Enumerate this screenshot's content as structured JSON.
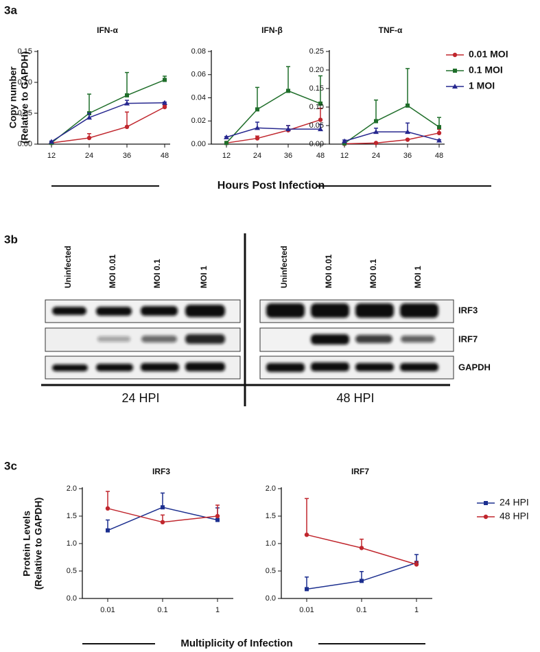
{
  "panel_a": {
    "label": "3a",
    "y_label": [
      "Copy number",
      "(Relative to GAPDH)"
    ],
    "x_label": "Hours Post Infection"
  },
  "panel_b": {
    "label": "3b",
    "lanes_24": [
      "Uninfected",
      "MOI 0.01",
      "MOI 0.1",
      "MOI 1"
    ],
    "lanes_48": [
      "Uninfected",
      "MOI 0.01",
      "MOI 0.1",
      "MOI 1"
    ],
    "rows": [
      "IRF3",
      "IRF7",
      "GAPDH"
    ],
    "time_labels": [
      "24 HPI",
      "48 HPI"
    ]
  },
  "panel_c": {
    "label": "3c",
    "y_label": [
      "Protein  Levels",
      "(Relative to GAPDH)"
    ],
    "x_label": "Multiplicity of Infection"
  },
  "chart_data": [
    {
      "type": "line",
      "title": "IFN-α",
      "categories": [
        "12",
        "24",
        "36",
        "48"
      ],
      "ylim": [
        0,
        0.15
      ],
      "yticks": [
        {
          "value": 0,
          "label": "0.00"
        },
        0.05,
        {
          "value": 0.1,
          "label": "0.10"
        },
        0.15
      ],
      "series": [
        {
          "name": "0.01 MOI",
          "color": "#c0262d",
          "marker": "circle",
          "values": [
            0.002,
            0.01,
            0.028,
            0.06
          ],
          "errors": [
            0,
            0.007,
            0.024,
            0.003
          ]
        },
        {
          "name": "0.1 MOI",
          "color": "#1f6e2a",
          "marker": "square",
          "values": [
            0.002,
            0.05,
            0.079,
            0.104
          ],
          "errors": [
            0,
            0.031,
            0.037,
            0.006
          ]
        },
        {
          "name": "1 MOI",
          "color": "#27288f",
          "marker": "triangle",
          "values": [
            0.004,
            0.043,
            0.066,
            0.067
          ],
          "errors": [
            0.001,
            0.007,
            0.005,
            0.001
          ]
        }
      ]
    },
    {
      "type": "line",
      "title": "IFN-β",
      "categories": [
        "12",
        "24",
        "36",
        "48"
      ],
      "ylim": [
        0,
        0.08
      ],
      "yticks": [
        {
          "value": 0,
          "label": "0.00"
        },
        0.02,
        0.04,
        0.06,
        0.08
      ],
      "series": [
        {
          "name": "0.01 MOI",
          "color": "#c0262d",
          "marker": "circle",
          "values": [
            0.001,
            0.005,
            0.012,
            0.021
          ],
          "errors": [
            0,
            0.002,
            0.004,
            0.01
          ]
        },
        {
          "name": "0.1 MOI",
          "color": "#1f6e2a",
          "marker": "square",
          "values": [
            0.001,
            0.03,
            0.046,
            0.035
          ],
          "errors": [
            0,
            0.019,
            0.021,
            0.024
          ]
        },
        {
          "name": "1 MOI",
          "color": "#27288f",
          "marker": "triangle",
          "values": [
            0.006,
            0.014,
            0.013,
            0.013
          ],
          "errors": [
            0.0005,
            0.005,
            0.003,
            0.004
          ]
        }
      ]
    },
    {
      "type": "line",
      "title": "TNF-α",
      "categories": [
        "12",
        "24",
        "36",
        "48"
      ],
      "ylim": [
        0,
        0.25
      ],
      "yticks": [
        {
          "value": 0,
          "label": "0.00"
        },
        0.05,
        {
          "value": 0.1,
          "label": "0.10"
        },
        0.15,
        {
          "value": 0.2,
          "label": "0.20"
        },
        0.25
      ],
      "legend": "right",
      "series": [
        {
          "name": "0.01 MOI",
          "color": "#c0262d",
          "marker": "circle",
          "values": [
            0.001,
            0.003,
            0.012,
            0.03
          ],
          "errors": [
            0,
            0.001,
            0.002,
            0.01
          ]
        },
        {
          "name": "0.1 MOI",
          "color": "#1f6e2a",
          "marker": "square",
          "values": [
            0.002,
            0.062,
            0.104,
            0.046
          ],
          "errors": [
            0,
            0.057,
            0.1,
            0.026
          ]
        },
        {
          "name": "1 MOI",
          "color": "#27288f",
          "marker": "triangle",
          "values": [
            0.008,
            0.033,
            0.033,
            0.01
          ],
          "errors": [
            0.003,
            0.01,
            0.024,
            0.002
          ]
        }
      ]
    },
    {
      "type": "line",
      "title": "IRF3",
      "categories": [
        "0.01",
        "0.1",
        "1"
      ],
      "ylim": [
        0,
        2
      ],
      "yticks": [
        {
          "value": 0,
          "label": "0.0"
        },
        0.5,
        {
          "value": 1,
          "label": "1.0"
        },
        1.5,
        {
          "value": 2,
          "label": "2.0"
        }
      ],
      "series": [
        {
          "name": "24 HPI",
          "color": "#1c2f8f",
          "marker": "square",
          "values": [
            1.24,
            1.66,
            1.43
          ],
          "errors": [
            0.19,
            0.26,
            0.22
          ]
        },
        {
          "name": "48 HPI",
          "color": "#c0262d",
          "marker": "circle",
          "values": [
            1.64,
            1.39,
            1.5
          ],
          "errors": [
            0.31,
            0.13,
            0.2
          ]
        }
      ]
    },
    {
      "type": "line",
      "title": "IRF7",
      "categories": [
        "0.01",
        "0.1",
        "1"
      ],
      "ylim": [
        0,
        2
      ],
      "yticks": [
        {
          "value": 0,
          "label": "0.0"
        },
        0.5,
        {
          "value": 1,
          "label": "1.0"
        },
        1.5,
        {
          "value": 2,
          "label": "2.0"
        }
      ],
      "legend": "right",
      "series": [
        {
          "name": "24 HPI",
          "color": "#1c2f8f",
          "marker": "square",
          "values": [
            0.17,
            0.32,
            0.65
          ],
          "errors": [
            0.22,
            0.17,
            0.15
          ]
        },
        {
          "name": "48 HPI",
          "color": "#c0262d",
          "marker": "circle",
          "values": [
            1.16,
            0.92,
            0.62
          ],
          "errors": [
            0.66,
            0.16,
            0.05
          ]
        }
      ]
    }
  ]
}
